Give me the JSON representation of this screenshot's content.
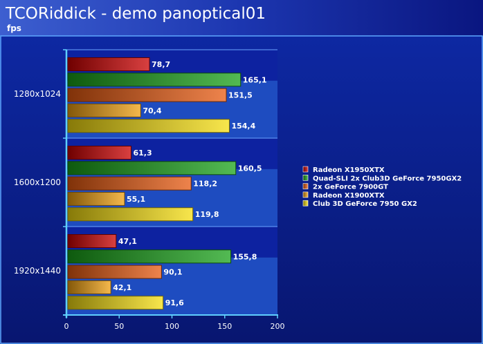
{
  "chart_data": {
    "type": "bar",
    "orientation": "horizontal",
    "title": "TCORiddick - demo panoptical01",
    "subtitle": "fps",
    "categories": [
      "1280x1024",
      "1600x1200",
      "1920x1440"
    ],
    "series": [
      {
        "name": "Radeon X1950XTX",
        "values": [
          78.7,
          61.3,
          47.1
        ],
        "value_labels": [
          "78,7",
          "61,3",
          "47,1"
        ],
        "color": "#cc0000"
      },
      {
        "name": "Quad-SLI 2x Club3D GeForce 7950GX2",
        "values": [
          165.1,
          160.5,
          155.8
        ],
        "value_labels": [
          "165,1",
          "160,5",
          "155,8"
        ],
        "color": "#1aa31a"
      },
      {
        "name": "2x GeForce 7900GT",
        "values": [
          151.5,
          118.2,
          90.1
        ],
        "value_labels": [
          "151,5",
          "118,2",
          "90,1"
        ],
        "color": "#e85a10"
      },
      {
        "name": "Radeon X1900XTX",
        "values": [
          70.4,
          55.1,
          42.1
        ],
        "value_labels": [
          "70,4",
          "55,1",
          "42,1"
        ],
        "color": "#f0a010"
      },
      {
        "name": "Club 3D GeForce 7950 GX2",
        "values": [
          154.4,
          119.8,
          91.6
        ],
        "value_labels": [
          "154,4",
          "119,8",
          "91,6"
        ],
        "color": "#f5dd10"
      }
    ],
    "xlim": [
      0,
      200
    ],
    "x_ticks": [
      "0",
      "50",
      "100",
      "150",
      "200"
    ],
    "legend_position": "right",
    "grid": true
  }
}
